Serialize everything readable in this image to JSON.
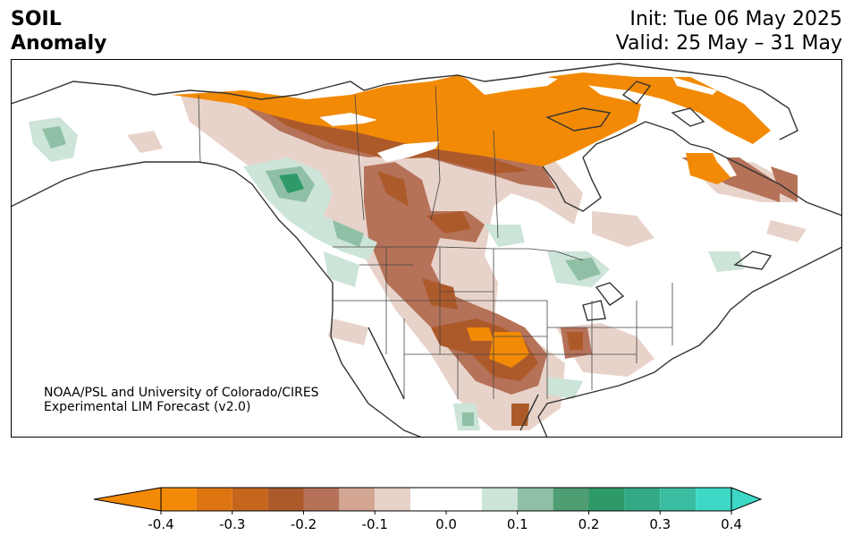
{
  "header": {
    "variable": "SOIL",
    "field": "Anomaly",
    "init": "Init: Tue 06 May 2025",
    "valid": "Valid: 25 May – 31 May"
  },
  "credit": {
    "line1": "NOAA/PSL and University of Colorado/CIRES",
    "line2": "Experimental LIM Forecast (v2.0)"
  },
  "colorbar": {
    "levels": [
      -0.4,
      -0.35,
      -0.3,
      -0.25,
      -0.2,
      -0.15,
      -0.1,
      -0.05,
      0.05,
      0.1,
      0.15,
      0.2,
      0.25,
      0.3,
      0.35,
      0.4
    ],
    "colors": [
      "#f28a05",
      "#dd7510",
      "#c6661e",
      "#ad5a2b",
      "#b57259",
      "#d2a693",
      "#e8d3ca",
      "#ffffff",
      "#cde4d8",
      "#8fc0a5",
      "#4f9d73",
      "#2e9a6a",
      "#33aa85",
      "#3abda0",
      "#3dd9c6"
    ],
    "extend_low_color": "#f28a05",
    "extend_high_color": "#3dd9c6",
    "tick_labels": [
      "-0.4",
      "-0.3",
      "-0.2",
      "-0.1",
      "0.0",
      "0.1",
      "0.2",
      "0.3",
      "0.4"
    ],
    "tick_values": [
      -0.4,
      -0.3,
      -0.2,
      -0.1,
      0.0,
      0.1,
      0.2,
      0.3,
      0.4
    ]
  },
  "colors": {
    "dry_strong": "#f28a05",
    "dry_mid": "#ad5a2b",
    "dry_weak": "#e8d3ca",
    "wet_weak": "#cde4d8",
    "wet_mid": "#4f9d73",
    "wet_strong": "#2e9a6a",
    "coastline": "#333333"
  }
}
